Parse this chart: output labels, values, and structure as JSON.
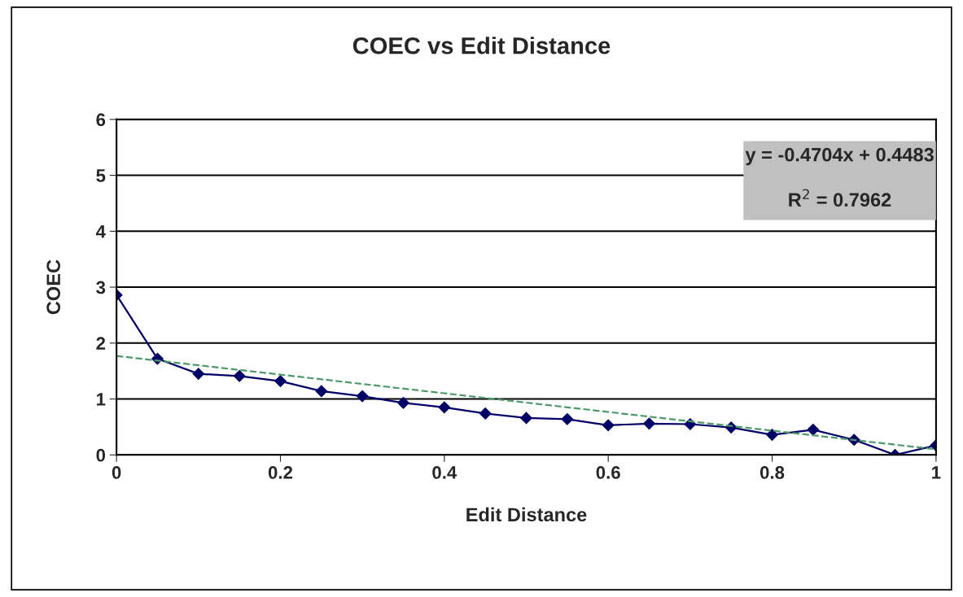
{
  "chart_data": {
    "type": "line",
    "title": "COEC vs Edit Distance",
    "xlabel": "Edit Distance",
    "ylabel": "COEC",
    "x": [
      0,
      0.05,
      0.1,
      0.15,
      0.2,
      0.25,
      0.3,
      0.35,
      0.4,
      0.45,
      0.5,
      0.55,
      0.6,
      0.65,
      0.7,
      0.75,
      0.8,
      0.85,
      0.9,
      0.95,
      1
    ],
    "series": [
      {
        "color": "#000066",
        "marker": "diamond",
        "values": [
          2.86,
          1.72,
          1.45,
          1.41,
          1.32,
          1.14,
          1.05,
          0.93,
          0.85,
          0.74,
          0.66,
          0.64,
          0.53,
          0.56,
          0.55,
          0.49,
          0.36,
          0.45,
          0.27,
          0.0,
          0.17
        ]
      },
      {
        "color": "#4f9a6a",
        "x": [
          0,
          1
        ],
        "values": [
          1.77,
          0.1
        ],
        "line_style": "dashed",
        "marker": "none"
      }
    ],
    "xlim": [
      0,
      1
    ],
    "xticks": [
      0,
      0.2,
      0.4,
      0.6,
      0.8,
      1
    ],
    "ylim": [
      0,
      6
    ],
    "yticks": [
      0,
      1,
      2,
      3,
      4,
      5,
      6
    ],
    "grid": "y",
    "annotations": [
      "y = -0.4704x + 0.4483",
      "R$^{2}$ = 0.7962"
    ]
  }
}
